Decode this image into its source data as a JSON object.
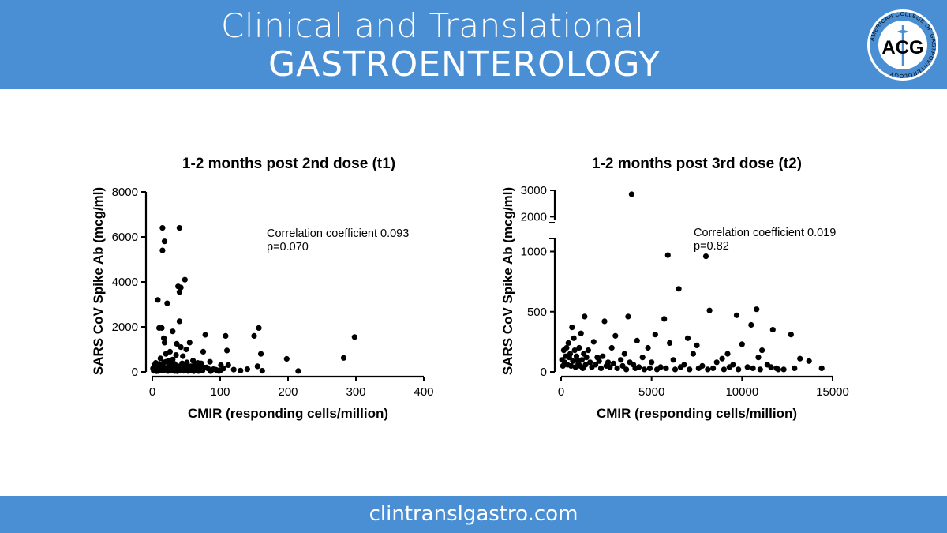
{
  "header": {
    "title_line1": "Clinical and Translational",
    "title_line2": "GASTROENTEROLOGY",
    "logo": {
      "ring_text": "AMERICAN COLLEGE OF GASTROENTEROLOGY",
      "initials": "ACG",
      "icon": "caduceus-icon"
    }
  },
  "footer": {
    "url": "clintranslgastro.com"
  },
  "colors": {
    "banner": "#4a8fd4",
    "text_on_banner": "#ffffff",
    "points": "#000000"
  },
  "chart_data": [
    {
      "type": "scatter",
      "title": "1-2 months post 2nd dose (t1)",
      "xlabel": "CMIR (responding cells/million)",
      "ylabel": "SARS CoV Spike Ab (mcg/ml)",
      "xlim": [
        0,
        400
      ],
      "ylim": [
        0,
        8000
      ],
      "xticks": [
        0,
        100,
        200,
        300,
        400
      ],
      "yticks": [
        0,
        2000,
        4000,
        6000,
        8000
      ],
      "annotation": [
        "Correlation coefficient 0.093",
        "p=0.070"
      ],
      "points": [
        [
          15,
          6400
        ],
        [
          40,
          6400
        ],
        [
          18,
          5800
        ],
        [
          15,
          5400
        ],
        [
          48,
          4100
        ],
        [
          38,
          3800
        ],
        [
          42,
          3750
        ],
        [
          40,
          3550
        ],
        [
          8,
          3200
        ],
        [
          22,
          3050
        ],
        [
          40,
          2250
        ],
        [
          10,
          1950
        ],
        [
          14,
          1950
        ],
        [
          30,
          1800
        ],
        [
          78,
          1650
        ],
        [
          108,
          1600
        ],
        [
          150,
          1600
        ],
        [
          157,
          1950
        ],
        [
          298,
          1550
        ],
        [
          17,
          1500
        ],
        [
          18,
          1300
        ],
        [
          55,
          1300
        ],
        [
          36,
          1250
        ],
        [
          42,
          1100
        ],
        [
          50,
          1000
        ],
        [
          110,
          950
        ],
        [
          26,
          900
        ],
        [
          75,
          900
        ],
        [
          20,
          800
        ],
        [
          160,
          800
        ],
        [
          35,
          750
        ],
        [
          45,
          700
        ],
        [
          282,
          620
        ],
        [
          198,
          580
        ],
        [
          12,
          600
        ],
        [
          30,
          550
        ],
        [
          60,
          500
        ],
        [
          85,
          450
        ],
        [
          22,
          450
        ],
        [
          67,
          400
        ],
        [
          155,
          250
        ],
        [
          5,
          400
        ],
        [
          10,
          350
        ],
        [
          15,
          300
        ],
        [
          20,
          450
        ],
        [
          25,
          350
        ],
        [
          28,
          200
        ],
        [
          32,
          300
        ],
        [
          38,
          250
        ],
        [
          44,
          380
        ],
        [
          48,
          150
        ],
        [
          52,
          220
        ],
        [
          58,
          120
        ],
        [
          62,
          300
        ],
        [
          66,
          180
        ],
        [
          70,
          100
        ],
        [
          72,
          380
        ],
        [
          80,
          200
        ],
        [
          90,
          120
        ],
        [
          95,
          80
        ],
        [
          100,
          60
        ],
        [
          105,
          150
        ],
        [
          112,
          300
        ],
        [
          120,
          100
        ],
        [
          130,
          60
        ],
        [
          140,
          120
        ],
        [
          162,
          50
        ],
        [
          215,
          40
        ],
        [
          2,
          50
        ],
        [
          4,
          120
        ],
        [
          6,
          80
        ],
        [
          8,
          200
        ],
        [
          9,
          40
        ],
        [
          11,
          150
        ],
        [
          13,
          90
        ],
        [
          16,
          60
        ],
        [
          19,
          180
        ],
        [
          21,
          120
        ],
        [
          23,
          40
        ],
        [
          24,
          250
        ],
        [
          26,
          80
        ],
        [
          27,
          150
        ],
        [
          29,
          60
        ],
        [
          31,
          100
        ],
        [
          33,
          40
        ],
        [
          34,
          200
        ],
        [
          36,
          90
        ],
        [
          37,
          30
        ],
        [
          39,
          150
        ],
        [
          41,
          60
        ],
        [
          43,
          100
        ],
        [
          46,
          50
        ],
        [
          49,
          80
        ],
        [
          53,
          40
        ],
        [
          56,
          60
        ],
        [
          61,
          30
        ],
        [
          64,
          80
        ],
        [
          68,
          40
        ],
        [
          74,
          60
        ],
        [
          86,
          30
        ],
        [
          3,
          300
        ],
        [
          7,
          350
        ],
        [
          12,
          250
        ],
        [
          17,
          420
        ],
        [
          24,
          500
        ],
        [
          29,
          420
        ],
        [
          33,
          350
        ],
        [
          46,
          300
        ],
        [
          51,
          420
        ],
        [
          57,
          250
        ],
        [
          63,
          200
        ],
        [
          69,
          280
        ],
        [
          76,
          200
        ],
        [
          82,
          150
        ],
        [
          93,
          100
        ],
        [
          98,
          40
        ],
        [
          101,
          300
        ],
        [
          1,
          150
        ],
        [
          5,
          250
        ],
        [
          6,
          30
        ]
      ]
    },
    {
      "type": "scatter",
      "title": "1-2 months post 3rd dose (t2)",
      "xlabel": "CMIR (responding cells/million)",
      "ylabel": "SARS CoV Spike Ab (mcg/ml)",
      "xlim": [
        0,
        15000
      ],
      "ylim": [
        0,
        3000
      ],
      "y_axis_break": [
        1200,
        1800
      ],
      "xticks": [
        0,
        5000,
        10000,
        15000
      ],
      "yticks": [
        0,
        500,
        1000,
        2000,
        3000
      ],
      "annotation": [
        "Correlation coefficient 0.019",
        "p=0.82"
      ],
      "points": [
        [
          3900,
          2850
        ],
        [
          5900,
          970
        ],
        [
          8000,
          960
        ],
        [
          6500,
          690
        ],
        [
          8200,
          510
        ],
        [
          10800,
          520
        ],
        [
          9700,
          470
        ],
        [
          1300,
          460
        ],
        [
          3700,
          460
        ],
        [
          5700,
          440
        ],
        [
          2400,
          420
        ],
        [
          10500,
          390
        ],
        [
          11700,
          350
        ],
        [
          12700,
          310
        ],
        [
          600,
          370
        ],
        [
          1100,
          320
        ],
        [
          3000,
          300
        ],
        [
          4200,
          260
        ],
        [
          5200,
          310
        ],
        [
          7000,
          280
        ],
        [
          7500,
          220
        ],
        [
          10000,
          230
        ],
        [
          4800,
          200
        ],
        [
          1800,
          250
        ],
        [
          2800,
          200
        ],
        [
          3500,
          150
        ],
        [
          6000,
          240
        ],
        [
          9200,
          150
        ],
        [
          11100,
          180
        ],
        [
          10900,
          120
        ],
        [
          13200,
          110
        ],
        [
          13700,
          90
        ],
        [
          14400,
          30
        ],
        [
          12000,
          20
        ],
        [
          300,
          200
        ],
        [
          500,
          150
        ],
        [
          700,
          280
        ],
        [
          900,
          100
        ],
        [
          1500,
          180
        ],
        [
          2000,
          120
        ],
        [
          2600,
          80
        ],
        [
          3300,
          100
        ],
        [
          4000,
          60
        ],
        [
          4500,
          120
        ],
        [
          5000,
          80
        ],
        [
          5500,
          40
        ],
        [
          6200,
          100
        ],
        [
          6800,
          60
        ],
        [
          7300,
          150
        ],
        [
          7800,
          50
        ],
        [
          8600,
          80
        ],
        [
          8900,
          110
        ],
        [
          9500,
          60
        ],
        [
          10300,
          40
        ],
        [
          11400,
          60
        ],
        [
          11900,
          30
        ],
        [
          50,
          100
        ],
        [
          100,
          50
        ],
        [
          150,
          180
        ],
        [
          200,
          80
        ],
        [
          250,
          130
        ],
        [
          350,
          60
        ],
        [
          400,
          240
        ],
        [
          450,
          120
        ],
        [
          550,
          50
        ],
        [
          650,
          90
        ],
        [
          750,
          180
        ],
        [
          800,
          40
        ],
        [
          850,
          130
        ],
        [
          950,
          70
        ],
        [
          1000,
          200
        ],
        [
          1050,
          50
        ],
        [
          1150,
          100
        ],
        [
          1200,
          30
        ],
        [
          1250,
          150
        ],
        [
          1350,
          60
        ],
        [
          1400,
          120
        ],
        [
          1600,
          80
        ],
        [
          1700,
          40
        ],
        [
          1900,
          60
        ],
        [
          2100,
          90
        ],
        [
          2200,
          30
        ],
        [
          2300,
          130
        ],
        [
          2500,
          50
        ],
        [
          2700,
          40
        ],
        [
          2900,
          70
        ],
        [
          3100,
          30
        ],
        [
          3400,
          50
        ],
        [
          3600,
          20
        ],
        [
          3800,
          80
        ],
        [
          4100,
          30
        ],
        [
          4300,
          40
        ],
        [
          4600,
          20
        ],
        [
          4900,
          30
        ],
        [
          5300,
          20
        ],
        [
          5800,
          30
        ],
        [
          6300,
          20
        ],
        [
          6600,
          40
        ],
        [
          7100,
          20
        ],
        [
          7600,
          30
        ],
        [
          8100,
          20
        ],
        [
          8400,
          30
        ],
        [
          9000,
          20
        ],
        [
          9300,
          40
        ],
        [
          9800,
          20
        ],
        [
          10600,
          30
        ],
        [
          11000,
          20
        ],
        [
          11600,
          40
        ],
        [
          12300,
          20
        ],
        [
          12900,
          30
        ]
      ]
    }
  ]
}
